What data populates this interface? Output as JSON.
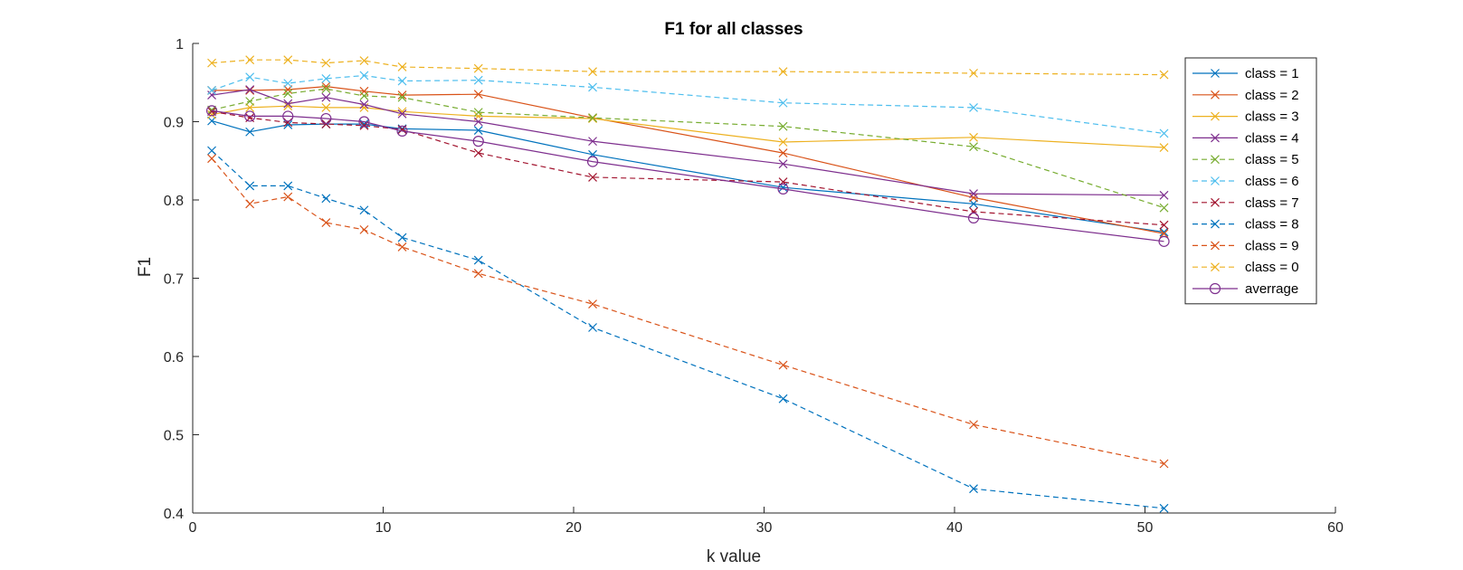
{
  "chart_data": {
    "type": "line",
    "title": "F1 for all classes",
    "xlabel": "k value",
    "ylabel": "F1",
    "xlim": [
      0,
      60
    ],
    "ylim": [
      0.4,
      1
    ],
    "xticks": [
      "0",
      "10",
      "20",
      "30",
      "40",
      "50",
      "60"
    ],
    "yticks": [
      "0.4",
      "0.5",
      "0.6",
      "0.7",
      "0.8",
      "0.9",
      "1"
    ],
    "grid": false,
    "legend_position": "top-right",
    "x": [
      1,
      3,
      5,
      7,
      9,
      11,
      15,
      21,
      31,
      41,
      51
    ],
    "series": [
      {
        "name": "class = 1",
        "color": "#0072BD",
        "dash": "solid",
        "marker": "x",
        "values": [
          0.901,
          0.887,
          0.896,
          0.897,
          0.897,
          0.891,
          0.889,
          0.858,
          0.816,
          0.795,
          0.759
        ]
      },
      {
        "name": "class = 2",
        "color": "#D95319",
        "dash": "solid",
        "marker": "x",
        "values": [
          0.94,
          0.94,
          0.941,
          0.945,
          0.939,
          0.934,
          0.935,
          0.905,
          0.86,
          0.803,
          0.757
        ]
      },
      {
        "name": "class = 3",
        "color": "#EDB120",
        "dash": "solid",
        "marker": "x",
        "values": [
          0.909,
          0.918,
          0.92,
          0.918,
          0.918,
          0.913,
          0.907,
          0.904,
          0.874,
          0.88,
          0.867
        ]
      },
      {
        "name": "class = 4",
        "color": "#7E2F8E",
        "dash": "solid",
        "marker": "x",
        "values": [
          0.934,
          0.941,
          0.923,
          0.931,
          0.922,
          0.91,
          0.9,
          0.875,
          0.846,
          0.808,
          0.806
        ]
      },
      {
        "name": "class = 5",
        "color": "#77AC30",
        "dash": "dashed",
        "marker": "x",
        "values": [
          0.915,
          0.926,
          0.936,
          0.942,
          0.933,
          0.931,
          0.912,
          0.905,
          0.894,
          0.868,
          0.79
        ]
      },
      {
        "name": "class = 6",
        "color": "#4DBEEE",
        "dash": "dashed",
        "marker": "x",
        "values": [
          0.94,
          0.957,
          0.949,
          0.955,
          0.959,
          0.952,
          0.953,
          0.944,
          0.924,
          0.918,
          0.885
        ]
      },
      {
        "name": "class = 7",
        "color": "#A2142F",
        "dash": "dashed",
        "marker": "x",
        "values": [
          0.913,
          0.905,
          0.899,
          0.897,
          0.895,
          0.89,
          0.86,
          0.829,
          0.823,
          0.785,
          0.768
        ]
      },
      {
        "name": "class = 8",
        "color": "#0072BD",
        "dash": "dashed",
        "marker": "x",
        "values": [
          0.863,
          0.818,
          0.818,
          0.802,
          0.787,
          0.752,
          0.723,
          0.637,
          0.546,
          0.431,
          0.406
        ]
      },
      {
        "name": "class = 9",
        "color": "#D95319",
        "dash": "dashed",
        "marker": "x",
        "values": [
          0.853,
          0.795,
          0.804,
          0.771,
          0.762,
          0.74,
          0.706,
          0.667,
          0.589,
          0.513,
          0.463
        ]
      },
      {
        "name": "class = 0",
        "color": "#EDB120",
        "dash": "dashed",
        "marker": "x",
        "values": [
          0.975,
          0.979,
          0.979,
          0.975,
          0.978,
          0.97,
          0.968,
          0.964,
          0.964,
          0.962,
          0.96
        ]
      },
      {
        "name": "averrage",
        "color": "#7E2F8E",
        "dash": "solid",
        "marker": "o",
        "values": [
          0.914,
          0.907,
          0.907,
          0.904,
          0.9,
          0.888,
          0.875,
          0.849,
          0.814,
          0.777,
          0.747
        ]
      }
    ]
  }
}
